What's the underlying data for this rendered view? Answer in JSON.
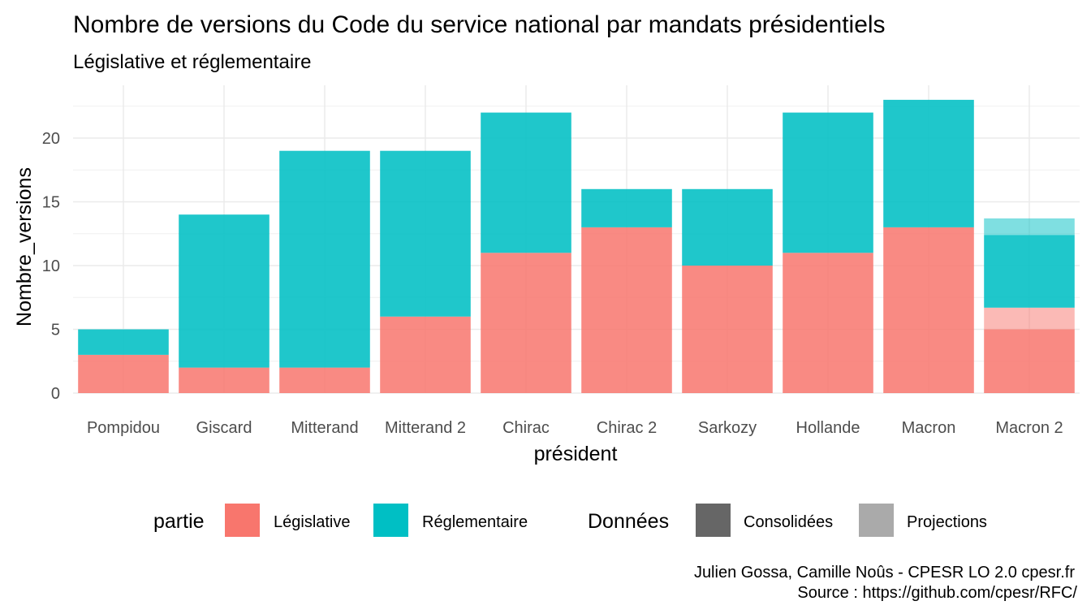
{
  "chart_data": {
    "type": "bar",
    "stacked": true,
    "title": "Nombre de versions du Code du service national par mandats présidentiels",
    "subtitle": "Législative et réglementaire",
    "xlabel": "président",
    "ylabel": "Nombre_versions",
    "ylim": [
      0,
      23.5
    ],
    "yticks": [
      0,
      5,
      10,
      15,
      20
    ],
    "grid": true,
    "categories": [
      "Pompidou",
      "Giscard",
      "Mitterand",
      "Mitterand 2",
      "Chirac",
      "Chirac 2",
      "Sarkozy",
      "Hollande",
      "Macron",
      "Macron 2"
    ],
    "series": [
      {
        "name": "Législative",
        "color": "#F8766D",
        "values": [
          3,
          2,
          2,
          6,
          11,
          13,
          10,
          11,
          13,
          5
        ]
      },
      {
        "name": "Réglementaire",
        "color": "#00BFC4",
        "values": [
          2,
          12,
          17,
          13,
          11,
          3,
          6,
          11,
          10,
          5.7
        ]
      }
    ],
    "projections": [
      {
        "category": "Macron 2",
        "series": "Législative",
        "value": 1.7
      },
      {
        "category": "Macron 2",
        "series": "Réglementaire",
        "value": 1.3
      }
    ],
    "legend": {
      "position": "bottom",
      "fill_title": "partie",
      "fill_items": [
        "Législative",
        "Réglementaire"
      ],
      "alpha_title": "Données",
      "alpha_items": [
        {
          "label": "Consolidées",
          "color": "#666666"
        },
        {
          "label": "Projections",
          "color": "#AAAAAA"
        }
      ]
    },
    "caption": [
      "Julien Gossa, Camille Noûs - CPESR LO 2.0 cpesr.fr",
      "Source : https://github.com/cpesr/RFC/"
    ]
  }
}
